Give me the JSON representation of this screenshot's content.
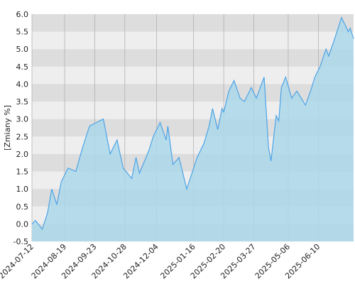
{
  "chart_data": {
    "type": "area",
    "y_label": "[Zmiany %]",
    "x": [
      "2024-07-12",
      "2024-07-16",
      "2024-07-24",
      "2024-07-30",
      "2024-08-04",
      "2024-08-10",
      "2024-08-15",
      "2024-08-23",
      "2024-09-01",
      "2024-09-09",
      "2024-09-17",
      "2024-09-25",
      "2024-10-03",
      "2024-10-11",
      "2024-10-19",
      "2024-10-26",
      "2024-11-05",
      "2024-11-10",
      "2024-11-14",
      "2024-11-25",
      "2024-11-30",
      "2024-12-08",
      "2024-12-15",
      "2024-12-17",
      "2024-12-23",
      "2024-12-30",
      "2025-01-08",
      "2025-01-20",
      "2025-01-28",
      "2025-02-03",
      "2025-02-07",
      "2025-02-13",
      "2025-02-18",
      "2025-02-20",
      "2025-02-26",
      "2025-03-04",
      "2025-03-11",
      "2025-03-16",
      "2025-03-24",
      "2025-03-30",
      "2025-04-05",
      "2025-04-08",
      "2025-04-13",
      "2025-04-16",
      "2025-04-22",
      "2025-04-25",
      "2025-04-28",
      "2025-05-03",
      "2025-05-10",
      "2025-05-16",
      "2025-05-26",
      "2025-06-01",
      "2025-06-06",
      "2025-06-12",
      "2025-06-19",
      "2025-06-22",
      "2025-06-29",
      "2025-07-07",
      "2025-07-15",
      "2025-07-17",
      "2025-07-21"
    ],
    "values": [
      0.0,
      0.1,
      -0.15,
      0.3,
      1.0,
      0.55,
      1.2,
      1.6,
      1.5,
      2.2,
      2.8,
      2.9,
      3.0,
      2.0,
      2.4,
      1.6,
      1.3,
      1.9,
      1.45,
      2.1,
      2.5,
      2.9,
      2.4,
      2.8,
      1.7,
      1.9,
      1.0,
      1.9,
      2.3,
      2.8,
      3.3,
      2.7,
      3.3,
      3.2,
      3.8,
      4.1,
      3.6,
      3.5,
      3.9,
      3.6,
      4.0,
      4.2,
      2.2,
      1.8,
      3.1,
      2.95,
      3.9,
      4.2,
      3.6,
      3.8,
      3.4,
      3.8,
      4.2,
      4.5,
      5.0,
      4.8,
      5.3,
      5.9,
      5.5,
      5.6,
      5.3
    ],
    "color": "#4da3e6",
    "fill": "#acd8ea",
    "xlim": [
      "2024-07-12",
      "2025-07-21"
    ],
    "xticks": [
      "2024-07-12",
      "2024-08-19",
      "2024-09-23",
      "2024-10-28",
      "2024-12-04",
      "2025-01-16",
      "2025-02-20",
      "2025-03-27",
      "2025-05-06",
      "2025-06-10"
    ],
    "ylim": [
      -0.5,
      6.0
    ],
    "yticks": [
      {
        "value": -0.5,
        "label": "-0.5"
      },
      {
        "value": 0,
        "label": "0.0"
      },
      {
        "value": 0.5,
        "label": "0.5"
      },
      {
        "value": 1,
        "label": "1.0"
      },
      {
        "value": 1.5,
        "label": "1.5"
      },
      {
        "value": 2,
        "label": "2.0"
      },
      {
        "value": 2.5,
        "label": "2.5"
      },
      {
        "value": 3,
        "label": "3.0"
      },
      {
        "value": 3.5,
        "label": "3.5"
      },
      {
        "value": 4,
        "label": "4.0"
      },
      {
        "value": 4.5,
        "label": "4.5"
      },
      {
        "value": 5,
        "label": "5.0"
      },
      {
        "value": 5.5,
        "label": "5.5"
      },
      {
        "value": 6,
        "label": "6.0"
      }
    ],
    "grid": true
  }
}
